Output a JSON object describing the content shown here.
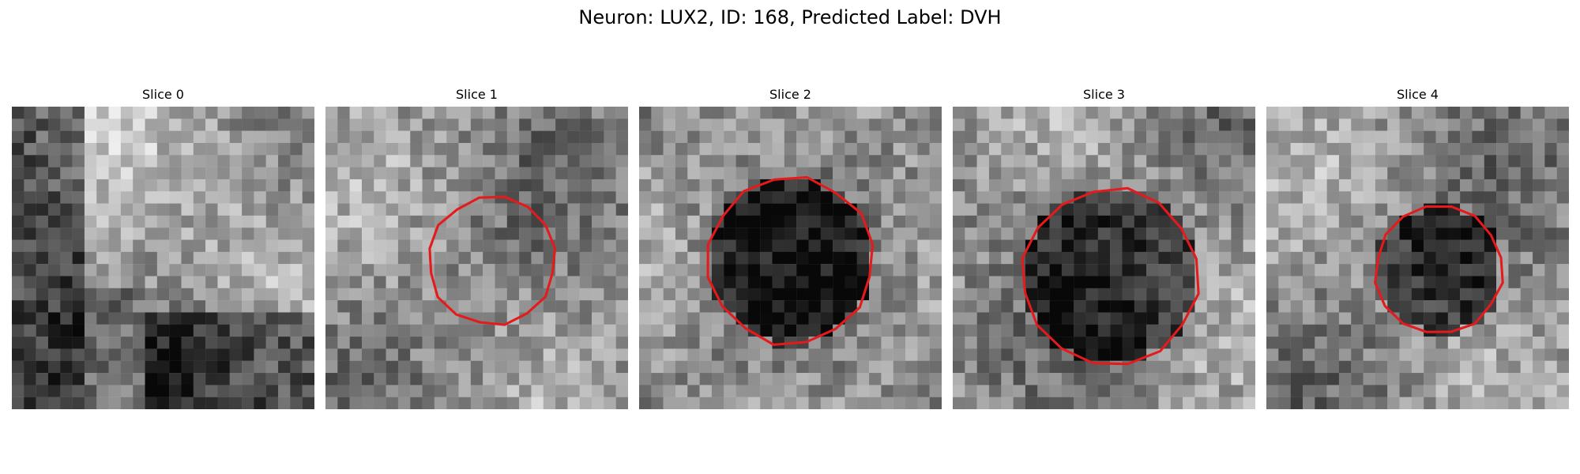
{
  "figure": {
    "title": "Neuron: LUX2, ID: 168, Predicted Label: DVH"
  },
  "slices": [
    {
      "label": "Slice 0",
      "has_contour": false,
      "contour_center": null,
      "contour_radius": null,
      "dark_blob": false
    },
    {
      "label": "Slice 1",
      "has_contour": true,
      "contour_center": [
        0.55,
        0.51
      ],
      "contour_radius": 0.21,
      "dark_blob": false
    },
    {
      "label": "Slice 2",
      "has_contour": true,
      "contour_center": [
        0.5,
        0.51
      ],
      "contour_radius": 0.275,
      "dark_blob": true
    },
    {
      "label": "Slice 3",
      "has_contour": true,
      "contour_center": [
        0.52,
        0.56
      ],
      "contour_radius": 0.29,
      "dark_blob": true
    },
    {
      "label": "Slice 4",
      "has_contour": true,
      "contour_center": [
        0.57,
        0.54
      ],
      "contour_radius": 0.21,
      "dark_blob": true
    }
  ],
  "colors": {
    "contour": "#e41a1c"
  }
}
